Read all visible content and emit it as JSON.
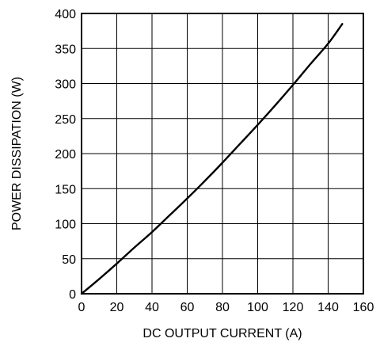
{
  "chart_data": {
    "type": "line",
    "title": "",
    "xlabel": "DC OUTPUT CURRENT (A)",
    "ylabel": "POWER DISSIPATION (W)",
    "xlim": [
      0,
      160
    ],
    "ylim": [
      0,
      400
    ],
    "xticks": [
      0,
      20,
      40,
      60,
      80,
      100,
      120,
      140,
      160
    ],
    "yticks": [
      0,
      50,
      100,
      150,
      200,
      250,
      300,
      350,
      400
    ],
    "grid": true,
    "line_color": "#000000",
    "series": [
      {
        "x": [
          0,
          10,
          20,
          30,
          40,
          50,
          60,
          70,
          80,
          90,
          100,
          110,
          120,
          130,
          140,
          148
        ],
        "values": [
          0,
          21,
          43,
          66,
          88,
          112,
          136,
          161,
          187,
          214,
          241,
          269,
          298,
          328,
          357,
          385
        ]
      }
    ]
  }
}
